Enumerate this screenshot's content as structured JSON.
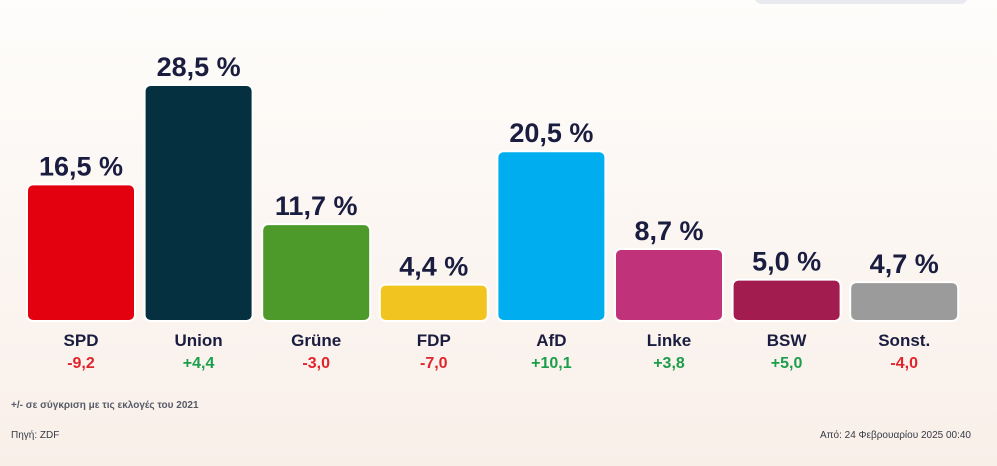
{
  "chart_data": {
    "type": "bar",
    "categories": [
      "SPD",
      "Union",
      "Grüne",
      "FDP",
      "AfD",
      "Linke",
      "BSW",
      "Sonst."
    ],
    "values": [
      16.5,
      28.5,
      11.7,
      4.4,
      20.5,
      8.7,
      5.0,
      4.7
    ],
    "value_labels": [
      "16,5 %",
      "28,5 %",
      "11,7 %",
      "4,4 %",
      "20,5 %",
      "8,7 %",
      "5,0 %",
      "4,7 %"
    ],
    "changes": [
      "-9,2",
      "+4,4",
      "-3,0",
      "-7,0",
      "+10,1",
      "+3,8",
      "+5,0",
      "-4,0"
    ],
    "colors": [
      "#e3000f",
      "#04303f",
      "#4d9a2a",
      "#f1c41f",
      "#00adef",
      "#c0337a",
      "#a31c4f",
      "#9b9b9b"
    ],
    "change_colors": {
      "positive": "#1a9e4a",
      "negative": "#e0242b"
    },
    "ylim": [
      0,
      30
    ],
    "grid": false,
    "legend": "none"
  },
  "footer": {
    "note": "+/- σε σύγκριση με τις εκλογές του 2021",
    "source": "Πηγή: ZDF",
    "timestamp": "Από: 24 Φεβρουαρίου 2025 00:40"
  }
}
